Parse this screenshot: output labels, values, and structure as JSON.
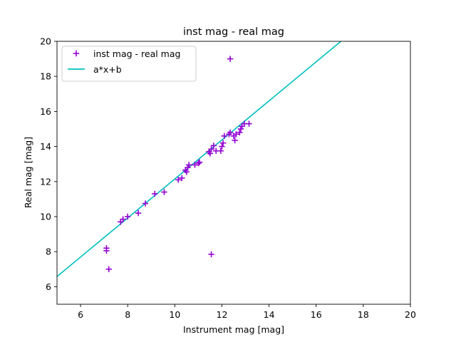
{
  "chart_data": {
    "type": "scatter",
    "title": "inst mag - real mag",
    "xlabel": "Instrument mag [mag]",
    "ylabel": "Real mag [mag]",
    "xlim": [
      5,
      20
    ],
    "ylim": [
      5,
      20
    ],
    "xticks": [
      6,
      8,
      10,
      12,
      14,
      16,
      18,
      20
    ],
    "yticks": [
      6,
      8,
      10,
      12,
      14,
      16,
      18,
      20
    ],
    "grid": false,
    "legend_position": "upper-left",
    "series": [
      {
        "name": "inst mag - real mag",
        "kind": "scatter",
        "marker": "plus",
        "color": "#9400d3",
        "points": [
          [
            7.1,
            8.2
          ],
          [
            7.1,
            8.05
          ],
          [
            7.2,
            7.0
          ],
          [
            7.7,
            9.7
          ],
          [
            7.8,
            9.85
          ],
          [
            8.0,
            10.0
          ],
          [
            8.45,
            10.2
          ],
          [
            8.75,
            10.75
          ],
          [
            9.15,
            11.3
          ],
          [
            9.55,
            11.4
          ],
          [
            10.15,
            12.1
          ],
          [
            10.3,
            12.2
          ],
          [
            10.45,
            12.65
          ],
          [
            10.5,
            12.55
          ],
          [
            10.55,
            12.8
          ],
          [
            10.6,
            12.95
          ],
          [
            10.85,
            12.95
          ],
          [
            11.0,
            13.05
          ],
          [
            11.05,
            13.1
          ],
          [
            11.45,
            13.7
          ],
          [
            11.5,
            13.6
          ],
          [
            11.55,
            13.85
          ],
          [
            11.65,
            14.05
          ],
          [
            11.75,
            13.75
          ],
          [
            11.95,
            13.75
          ],
          [
            12.0,
            14.0
          ],
          [
            12.05,
            14.2
          ],
          [
            12.1,
            14.6
          ],
          [
            12.3,
            14.7
          ],
          [
            12.35,
            14.8
          ],
          [
            12.5,
            14.6
          ],
          [
            12.55,
            14.35
          ],
          [
            12.6,
            14.7
          ],
          [
            12.75,
            14.8
          ],
          [
            12.8,
            15.0
          ],
          [
            12.85,
            15.15
          ],
          [
            12.95,
            15.3
          ],
          [
            13.15,
            15.3
          ],
          [
            12.35,
            19.0
          ],
          [
            11.55,
            7.85
          ]
        ]
      },
      {
        "name": "a*x+b",
        "kind": "line",
        "color": "#00bfbf",
        "x": [
          5,
          17.05
        ],
        "y": [
          6.58,
          20.0
        ]
      }
    ]
  }
}
